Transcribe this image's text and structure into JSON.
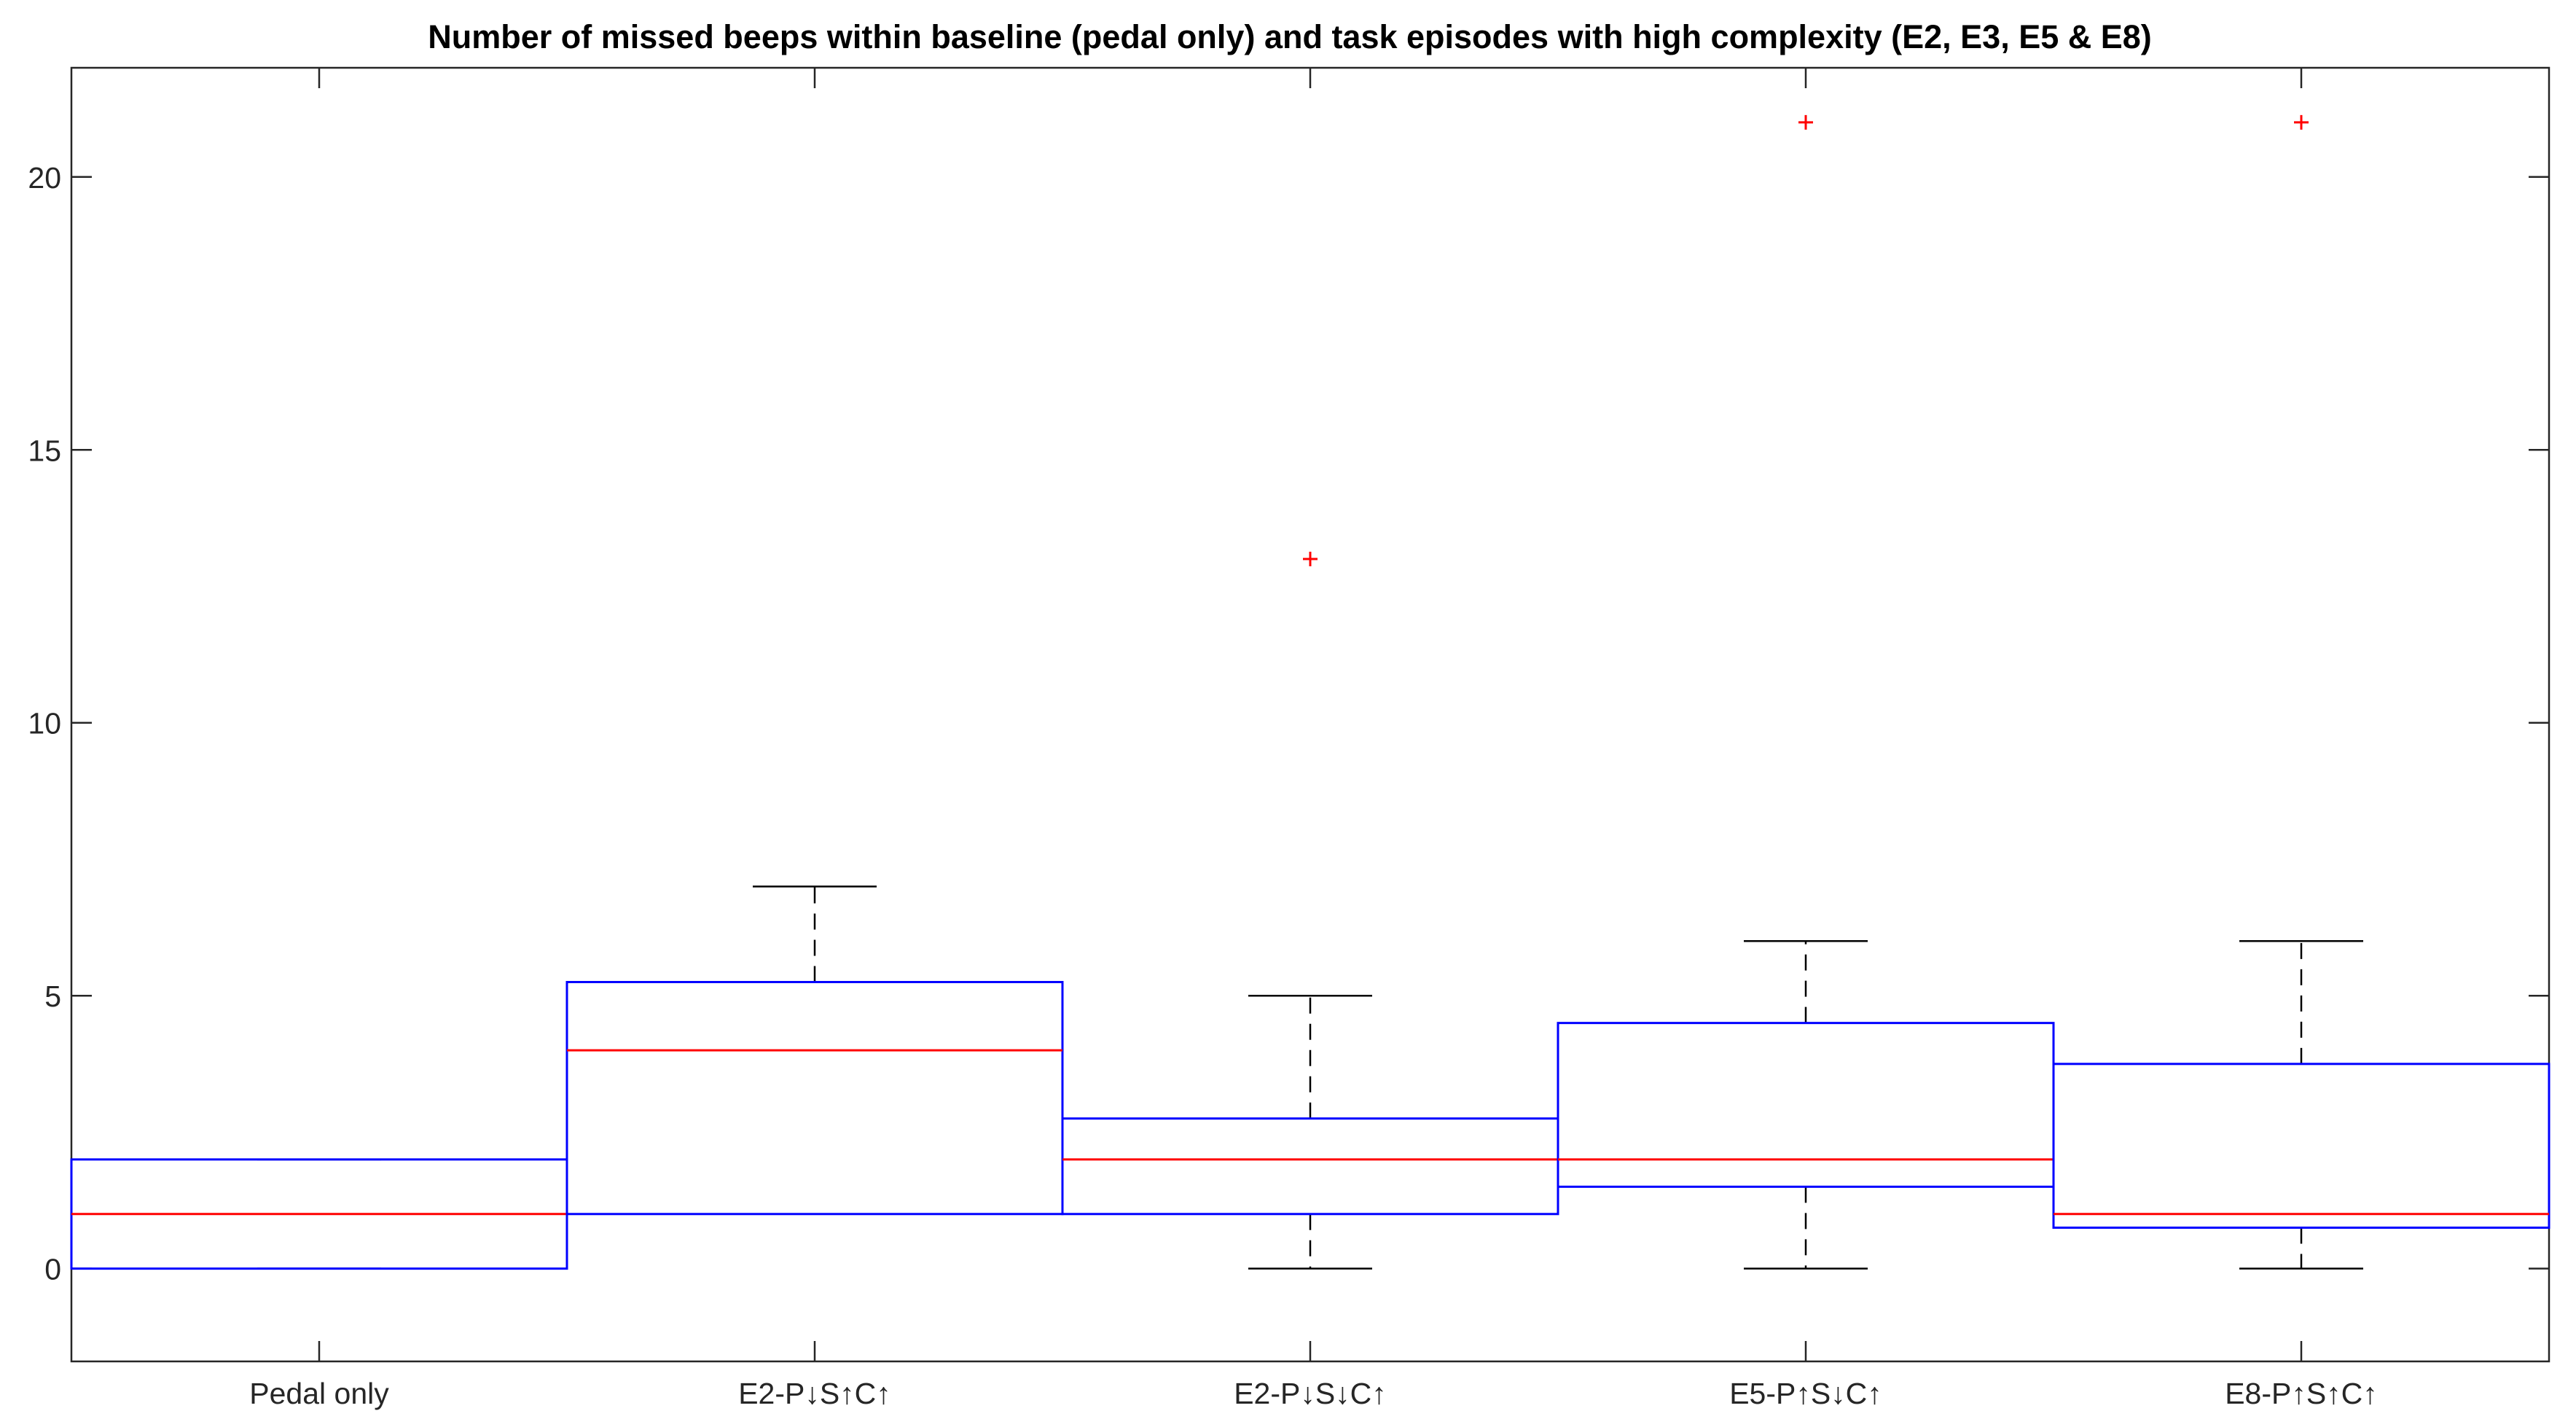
{
  "chart_data": {
    "type": "box",
    "title": "Number of missed beeps within baseline (pedal only) and task episodes with high complexity (E2, E3, E5 & E8)",
    "xlabel": "",
    "ylabel": "",
    "ylim": [
      -1.7,
      22
    ],
    "yticks": [
      0,
      5,
      10,
      15,
      20
    ],
    "grid": false,
    "categories": [
      "Pedal only",
      "E2-P↓S↑C↑",
      "E2-P↓S↓C↑",
      "E5-P↑S↓C↑",
      "E8-P↑S↑C↑"
    ],
    "boxes": [
      {
        "category": "Pedal only",
        "whisker_low": 0,
        "q1": 0,
        "median": 1,
        "q3": 2,
        "whisker_high": 2,
        "outliers": []
      },
      {
        "category": "E2-P↓S↑C↑",
        "whisker_low": 1,
        "q1": 1,
        "median": 4,
        "q3": 5.25,
        "whisker_high": 7,
        "outliers": []
      },
      {
        "category": "E2-P↓S↓C↑",
        "whisker_low": 0,
        "q1": 1,
        "median": 2,
        "q3": 2.75,
        "whisker_high": 5,
        "outliers": [
          13
        ]
      },
      {
        "category": "E5-P↑S↓C↑",
        "whisker_low": 0,
        "q1": 1.5,
        "median": 2,
        "q3": 4.5,
        "whisker_high": 6,
        "outliers": [
          21
        ]
      },
      {
        "category": "E8-P↑S↑C↑",
        "whisker_low": 0,
        "q1": 0.75,
        "median": 1,
        "q3": 3.75,
        "whisker_high": 6,
        "outliers": [
          21
        ]
      }
    ],
    "colors": {
      "box": "#0000ff",
      "median": "#ff0000",
      "whisker": "#000000",
      "outlier": "#ff0000",
      "axis": "#262626"
    }
  }
}
